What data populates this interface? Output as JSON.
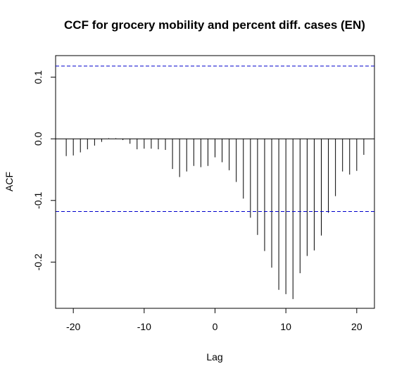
{
  "chart_data": {
    "type": "bar",
    "title": "CCF for grocery mobility and percent diff. cases (EN)",
    "xlabel": "Lag",
    "ylabel": "ACF",
    "xlim": [
      -22.5,
      22.5
    ],
    "ylim": [
      -0.275,
      0.135
    ],
    "x_ticks": [
      -20,
      -10,
      0,
      10,
      20
    ],
    "x_tick_labels": [
      "-20",
      "-10",
      "0",
      "10",
      "20"
    ],
    "y_ticks": [
      -0.2,
      -0.1,
      0.0,
      0.1
    ],
    "y_tick_labels": [
      "-0.2",
      "-0.1",
      "0.0",
      "0.1"
    ],
    "confidence_bound": 0.118,
    "confidence_color": "#0000cc",
    "lags": [
      -21,
      -20,
      -19,
      -18,
      -17,
      -16,
      -15,
      -14,
      -13,
      -12,
      -11,
      -10,
      -9,
      -8,
      -7,
      -6,
      -5,
      -4,
      -3,
      -2,
      -1,
      0,
      1,
      2,
      3,
      4,
      5,
      6,
      7,
      8,
      9,
      10,
      11,
      12,
      13,
      14,
      15,
      16,
      17,
      18,
      19,
      20,
      21
    ],
    "values": [
      -0.028,
      -0.027,
      -0.022,
      -0.017,
      -0.011,
      -0.005,
      0.001,
      0.001,
      -0.002,
      -0.008,
      -0.017,
      -0.016,
      -0.016,
      -0.017,
      -0.018,
      -0.049,
      -0.062,
      -0.053,
      -0.044,
      -0.046,
      -0.044,
      -0.03,
      -0.038,
      -0.051,
      -0.07,
      -0.097,
      -0.128,
      -0.156,
      -0.182,
      -0.209,
      -0.245,
      -0.252,
      -0.26,
      -0.218,
      -0.19,
      -0.181,
      -0.157,
      -0.12,
      -0.093,
      -0.053,
      -0.058,
      -0.052,
      -0.026
    ]
  }
}
